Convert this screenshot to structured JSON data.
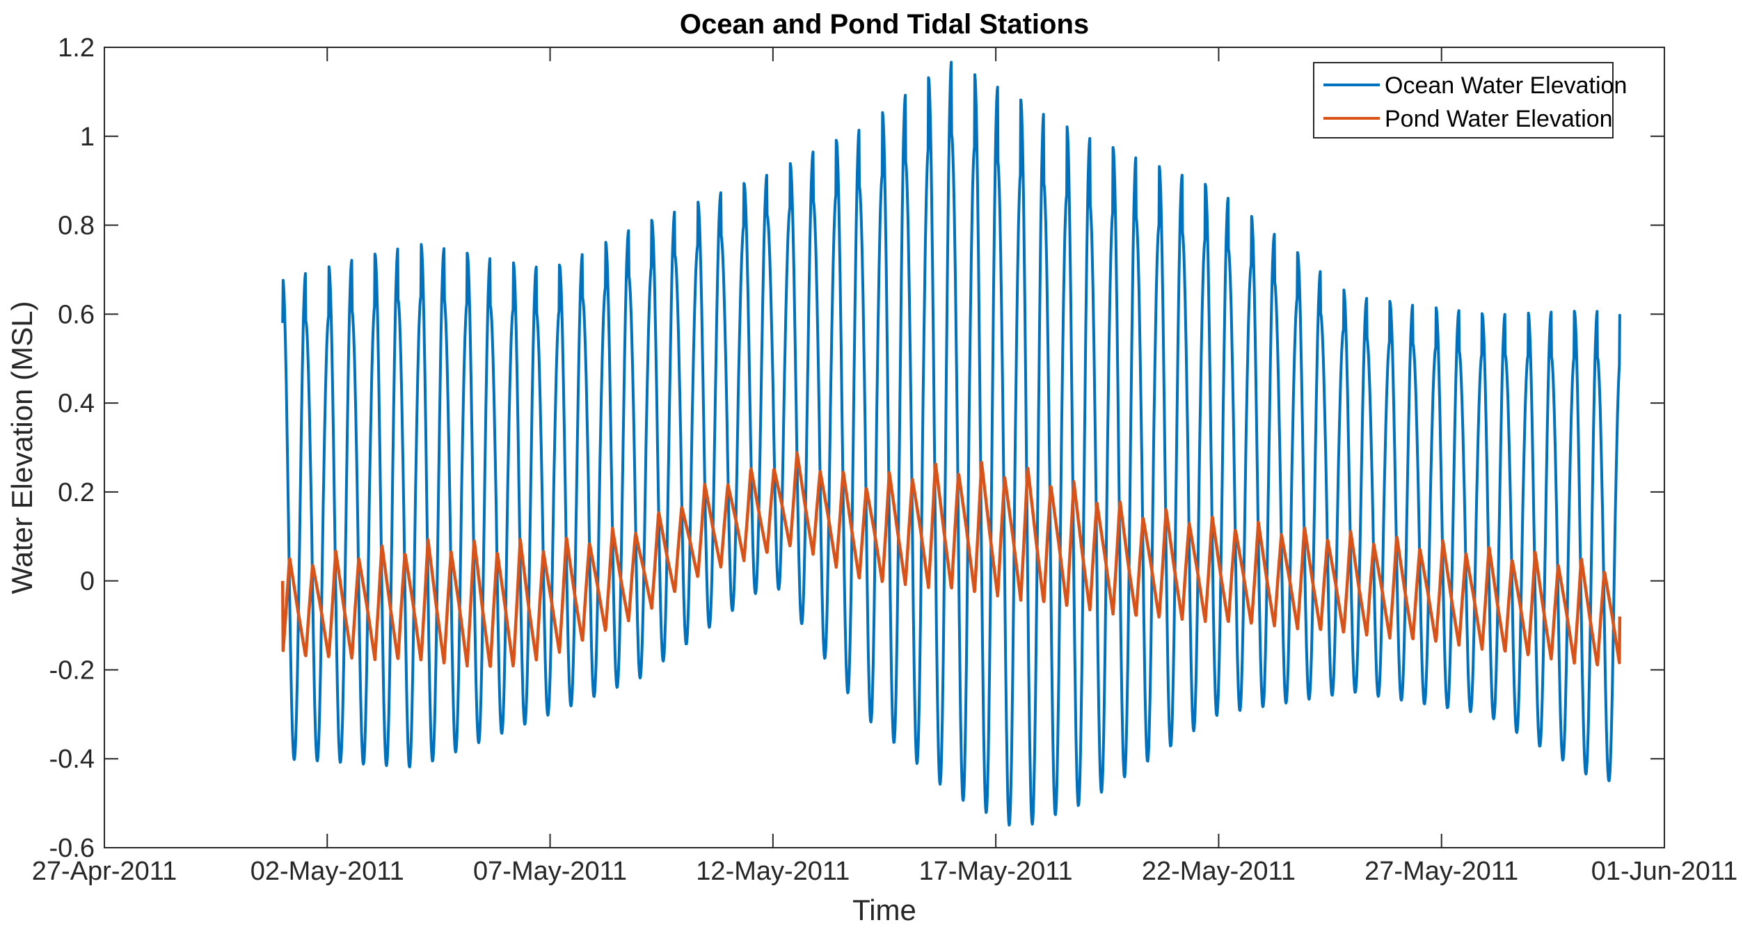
{
  "chart_data": {
    "type": "line",
    "title": "Ocean and Pond Tidal Stations",
    "xlabel": "Time",
    "ylabel": "Water Elevation (MSL)",
    "xlim": [
      0,
      35
    ],
    "ylim": [
      -0.6,
      1.2
    ],
    "x_ticks": [
      {
        "x": 0,
        "label": "27-Apr-2011"
      },
      {
        "x": 5,
        "label": "02-May-2011"
      },
      {
        "x": 10,
        "label": "07-May-2011"
      },
      {
        "x": 15,
        "label": "12-May-2011"
      },
      {
        "x": 20,
        "label": "17-May-2011"
      },
      {
        "x": 25,
        "label": "22-May-2011"
      },
      {
        "x": 30,
        "label": "27-May-2011"
      },
      {
        "x": 35,
        "label": "01-Jun-2011"
      }
    ],
    "y_ticks": [
      {
        "y": 1.2,
        "label": "1.2"
      },
      {
        "y": 1.0,
        "label": "1"
      },
      {
        "y": 0.8,
        "label": "0.8"
      },
      {
        "y": 0.6,
        "label": "0.6"
      },
      {
        "y": 0.4,
        "label": "0.4"
      },
      {
        "y": 0.2,
        "label": "0.2"
      },
      {
        "y": 0.0,
        "label": "0"
      },
      {
        "y": -0.2,
        "label": "-0.2"
      },
      {
        "y": -0.4,
        "label": "-0.4"
      },
      {
        "y": -0.6,
        "label": "-0.6"
      }
    ],
    "legend": {
      "position": "top-right",
      "entries": [
        "Ocean Water Elevation",
        "Pond Water Elevation"
      ]
    },
    "series": [
      {
        "name": "Ocean Water Elevation",
        "color": "#0072BD",
        "x_start": 4.0,
        "x_end": 34.0,
        "tidal_period_days": 0.5175,
        "start_value": 0.58,
        "end_value": 0.6,
        "max_envelope": [
          [
            4.0,
            0.68
          ],
          [
            7.0,
            0.76
          ],
          [
            10.0,
            0.7
          ],
          [
            12.0,
            0.8
          ],
          [
            15.0,
            0.92
          ],
          [
            17.0,
            1.02
          ],
          [
            19.0,
            1.17
          ],
          [
            22.0,
            1.0
          ],
          [
            25.0,
            0.88
          ],
          [
            28.0,
            0.64
          ],
          [
            31.0,
            0.6
          ],
          [
            34.0,
            0.61
          ]
        ],
        "min_envelope": [
          [
            4.0,
            -0.4
          ],
          [
            7.0,
            -0.42
          ],
          [
            10.0,
            -0.3
          ],
          [
            12.0,
            -0.22
          ],
          [
            15.0,
            0.0
          ],
          [
            17.0,
            -0.3
          ],
          [
            19.0,
            -0.48
          ],
          [
            20.5,
            -0.56
          ],
          [
            22.0,
            -0.5
          ],
          [
            25.0,
            -0.3
          ],
          [
            28.0,
            -0.25
          ],
          [
            31.0,
            -0.3
          ],
          [
            33.5,
            -0.45
          ],
          [
            34.0,
            -0.45
          ]
        ],
        "values_ref": [
          {
            "x": 19.05,
            "y": 1.17
          },
          {
            "x": 20.7,
            "y": -0.56
          },
          {
            "x": 4.5,
            "y": -0.48
          },
          {
            "x": 33.7,
            "y": -0.5
          }
        ]
      },
      {
        "name": "Pond Water Elevation",
        "color": "#D95319",
        "x_start": 4.0,
        "x_end": 34.0,
        "tidal_period_days": 0.5175,
        "start_value": 0.0,
        "end_value": -0.08,
        "max_envelope": [
          [
            4.0,
            0.04
          ],
          [
            7.0,
            0.08
          ],
          [
            10.0,
            0.08
          ],
          [
            12.0,
            0.12
          ],
          [
            13.5,
            0.21
          ],
          [
            15.5,
            0.28
          ],
          [
            17.0,
            0.22
          ],
          [
            19.0,
            0.26
          ],
          [
            21.0,
            0.24
          ],
          [
            23.0,
            0.16
          ],
          [
            26.0,
            0.12
          ],
          [
            30.0,
            0.08
          ],
          [
            34.0,
            0.03
          ]
        ],
        "min_envelope": [
          [
            4.0,
            -0.17
          ],
          [
            7.0,
            -0.18
          ],
          [
            9.0,
            -0.2
          ],
          [
            10.0,
            -0.17
          ],
          [
            12.0,
            -0.08
          ],
          [
            13.5,
            0.02
          ],
          [
            15.5,
            0.08
          ],
          [
            17.0,
            0.0
          ],
          [
            19.0,
            -0.02
          ],
          [
            21.0,
            -0.05
          ],
          [
            23.0,
            -0.08
          ],
          [
            26.0,
            -0.1
          ],
          [
            30.0,
            -0.14
          ],
          [
            34.0,
            -0.2
          ]
        ],
        "values_ref": [
          {
            "x": 15.4,
            "y": 0.29
          },
          {
            "x": 9.1,
            "y": -0.21
          },
          {
            "x": 33.8,
            "y": -0.21
          }
        ]
      }
    ]
  }
}
